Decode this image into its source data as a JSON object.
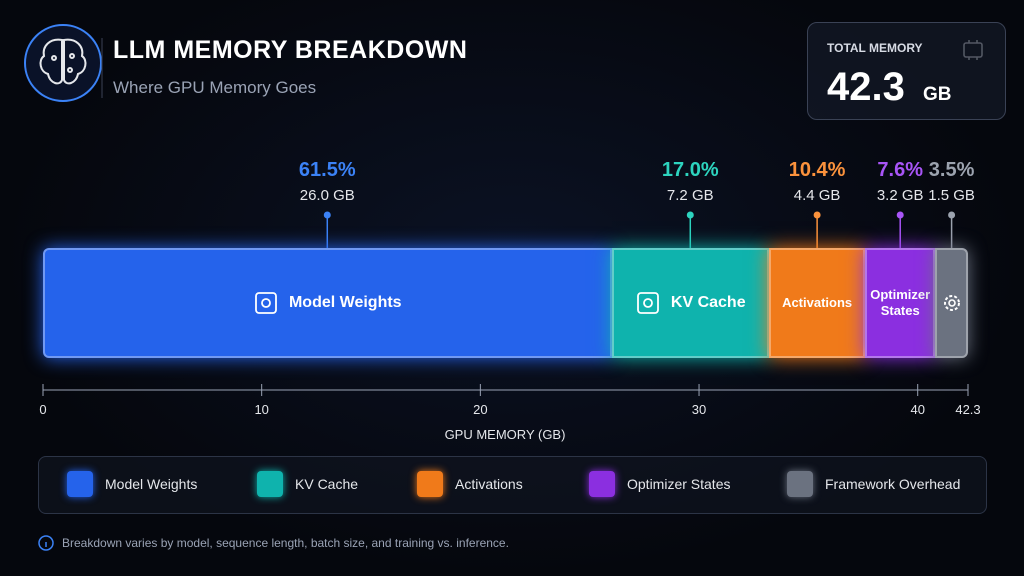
{
  "chart_data": {
    "type": "bar",
    "orientation": "horizontal",
    "stacked": true,
    "title": "LLM MEMORY BREAKDOWN",
    "subtitle": "Where GPU Memory Goes",
    "xlabel": "GPU MEMORY (GB)",
    "xlim": [
      0,
      42.3
    ],
    "xticks": [
      0,
      10,
      20,
      30,
      40,
      42.3
    ],
    "total": {
      "label": "TOTAL MEMORY",
      "value": 42.3,
      "unit": "GB"
    },
    "series": [
      {
        "name": "Model Weights",
        "color": "#2563eb",
        "label_color": "#3b82f6",
        "values": [
          26.0
        ],
        "value_labels": [
          "26.0 GB"
        ],
        "share": 61.5,
        "share_label": "61.5%"
      },
      {
        "name": "KV Cache",
        "color": "#0fb3ad",
        "label_color": "#2dd4bf",
        "values": [
          7.2
        ],
        "value_labels": [
          "7.2 GB"
        ],
        "share": 17.0,
        "share_label": "17.0%"
      },
      {
        "name": "Activations",
        "color": "#f07a1a",
        "label_color": "#fb923c",
        "values": [
          4.4
        ],
        "value_labels": [
          "4.4 GB"
        ],
        "share": 10.4,
        "share_label": "10.4%"
      },
      {
        "name": "Optimizer States",
        "color": "#8b2fe0",
        "label_color": "#a855f7",
        "values": [
          3.2
        ],
        "value_labels": [
          "3.2 GB"
        ],
        "share": 7.6,
        "share_label": "7.6%"
      },
      {
        "name": "Framework Overhead",
        "color": "#6b7280",
        "label_color": "#9ca3af",
        "values": [
          1.5
        ],
        "value_labels": [
          "1.5 GB"
        ],
        "share": 3.5,
        "share_label": "3.5%"
      }
    ]
  },
  "footnote": "Breakdown varies by model, sequence length, batch size, and training vs. inference."
}
